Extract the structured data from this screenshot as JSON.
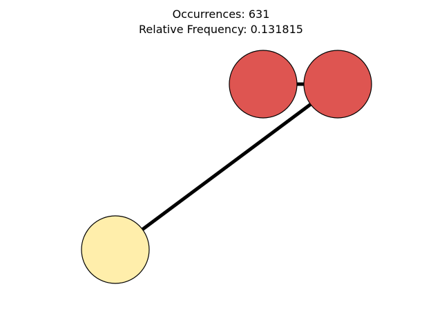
{
  "title": {
    "occurrences_line": "Occurrences: 631",
    "frequency_line": "Relative Frequency: 0.131815"
  },
  "graph": {
    "nodes": [
      {
        "id": "node-1",
        "fill": "#de5551"
      },
      {
        "id": "node-2",
        "fill": "#de5551"
      },
      {
        "id": "node-3",
        "fill": "#ffeeab"
      }
    ],
    "edges": [
      {
        "from": "node-1",
        "to": "node-2",
        "color": "#000000"
      },
      {
        "from": "node-2",
        "to": "node-3",
        "color": "#000000"
      }
    ]
  }
}
